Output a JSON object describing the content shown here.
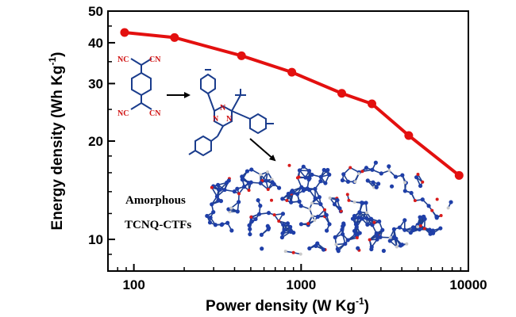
{
  "chart_data": {
    "type": "line",
    "xlabel_main": "Power density (W Kg",
    "xlabel_sup": "-1",
    "xlabel_close": ")",
    "ylabel_main": "Energy density (Wh Kg",
    "ylabel_sup": "-1",
    "ylabel_close": ")",
    "x_scale": "log",
    "y_scale": "log",
    "xlim": [
      70,
      10000
    ],
    "ylim": [
      8,
      50
    ],
    "x_ticks": [
      100,
      1000,
      10000
    ],
    "x_tick_labels": [
      "100",
      "1000",
      "10000"
    ],
    "y_ticks": [
      10,
      20,
      30,
      40,
      50
    ],
    "y_tick_labels": [
      "10",
      "20",
      "30",
      "40",
      "50"
    ],
    "series": [
      {
        "color": "#e3100f",
        "x": [
          88,
          175,
          440,
          880,
          1750,
          2650,
          4400,
          8800
        ],
        "y": [
          43,
          41.5,
          36.5,
          32.5,
          28,
          26,
          20.8,
          15.7
        ]
      }
    ],
    "annotations": [
      "Amorphous",
      "TCNQ-CTFs"
    ],
    "grid": false,
    "legend": "none"
  },
  "molecule": {
    "atom_n": "N",
    "atom_c": "C",
    "atom_nc": "NC",
    "atom_cn": "CN"
  }
}
